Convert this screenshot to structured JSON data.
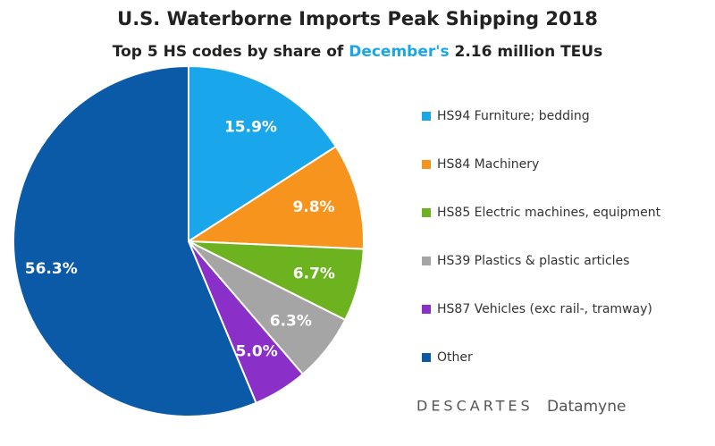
{
  "chart_data": {
    "type": "pie",
    "title": "U.S. Waterborne Imports Peak Shipping 2018",
    "subtitle": [
      "Top 5 HS codes by share of",
      "December's",
      "2.16 million TEUs"
    ],
    "categories": [
      "HS94 Furniture; bedding",
      "HS84 Machinery",
      "HS85 Electric machines, equipment",
      "HS39 Plastics & plastic articles",
      "HS87 Vehicles (exc rail-, tramway)",
      "Other"
    ],
    "values": [
      15.9,
      9.8,
      6.7,
      6.3,
      5.0,
      56.3
    ],
    "value_labels": [
      "15.9%",
      "9.8%",
      "6.7%",
      "6.3%",
      "5.0%",
      "56.3%"
    ],
    "colors": [
      "#1aa6ea",
      "#f7941d",
      "#6cb31f",
      "#a5a5a5",
      "#8a2fc8",
      "#0b5aa8"
    ],
    "logo": [
      "DESCARTES",
      "Datamyne"
    ]
  }
}
